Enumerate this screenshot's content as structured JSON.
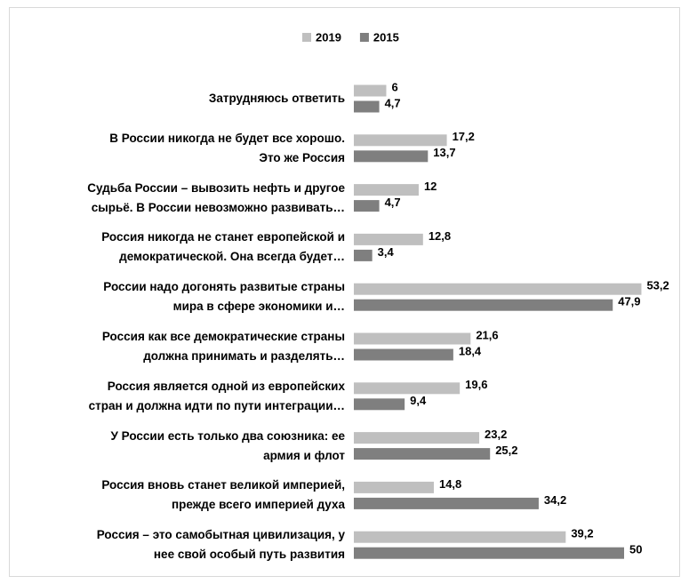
{
  "chart_data": {
    "type": "hbar",
    "categories": [
      "Затрудняюсь ответить",
      "В России никогда не будет все хорошо.\nЭто же Россия",
      "Судьба России – вывозить нефть и другое\nсырьё. В России невозможно развивать…",
      "Россия никогда не станет европейской и\nдемократической. Она всегда будет…",
      "России надо догонять развитые страны\nмира в сфере экономики и…",
      "Россия как все демократические страны\nдолжна принимать и разделять…",
      "Россия является одной из европейских\nстран и должна идти по пути интеграции…",
      "У России есть только два союзника: ее\nармия и флот",
      "Россия вновь станет великой империей,\nпрежде всего империей духа",
      "Россия – это самобытная цивилизация, у\nнее свой особый путь развития"
    ],
    "series": [
      {
        "name": "2019",
        "color": "#bfbfbf",
        "values": [
          6,
          17.2,
          12,
          12.8,
          53.2,
          21.6,
          19.6,
          23.2,
          14.8,
          39.2
        ],
        "value_labels": [
          "6",
          "17,2",
          "12",
          "12,8",
          "53,2",
          "21,6",
          "19,6",
          "23,2",
          "14,8",
          "39,2"
        ]
      },
      {
        "name": "2015",
        "color": "#7f7f7f",
        "values": [
          4.7,
          13.7,
          4.7,
          3.4,
          47.9,
          18.4,
          9.4,
          25.2,
          34.2,
          50
        ],
        "value_labels": [
          "4,7",
          "13,7",
          "4,7",
          "3,4",
          "47,9",
          "18,4",
          "9,4",
          "25,2",
          "34,2",
          "50"
        ]
      }
    ],
    "legend": "top"
  }
}
